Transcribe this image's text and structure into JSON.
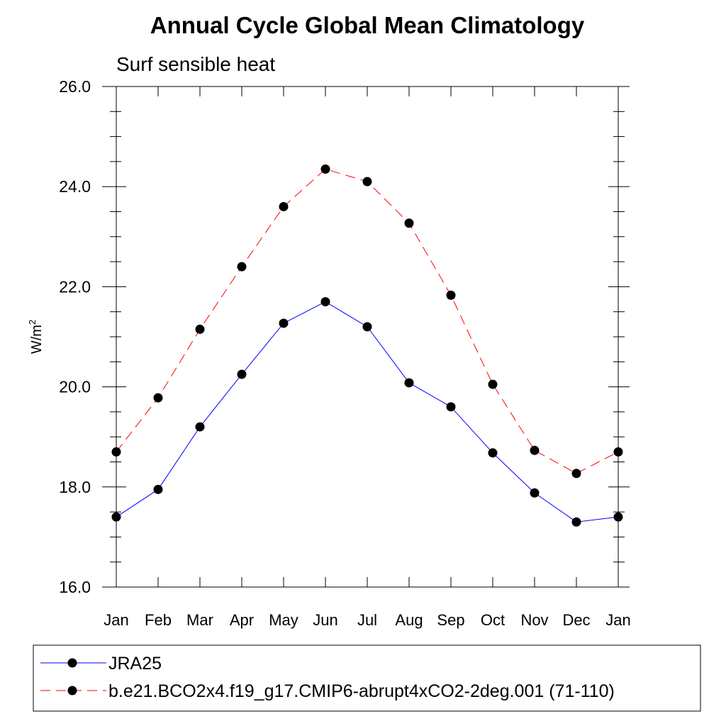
{
  "chart_data": {
    "type": "line",
    "title": "Annual Cycle Global Mean Climatology",
    "subtitle": "Surf sensible heat",
    "ylabel_base": "W/m",
    "ylabel_sup": "2",
    "xlabel": "",
    "categories": [
      "Jan",
      "Feb",
      "Mar",
      "Apr",
      "May",
      "Jun",
      "Jul",
      "Aug",
      "Sep",
      "Oct",
      "Nov",
      "Dec",
      "Jan"
    ],
    "ylim": [
      16.0,
      26.0
    ],
    "yticks": [
      16.0,
      18.0,
      20.0,
      22.0,
      24.0,
      26.0
    ],
    "ytick_labels": [
      "16.0",
      "18.0",
      "20.0",
      "22.0",
      "24.0",
      "26.0"
    ],
    "grid": false,
    "legend_placement": "bottom",
    "series": [
      {
        "name": "JRA25",
        "color": "#0000ff",
        "dashed": false,
        "marker_color": "#000000",
        "values": [
          17.4,
          17.95,
          19.2,
          20.25,
          21.27,
          21.7,
          21.2,
          20.08,
          19.6,
          18.68,
          17.88,
          17.3,
          17.4
        ]
      },
      {
        "name": "b.e21.BCO2x4.f19_g17.CMIP6-abrupt4xCO2-2deg.001 (71-110)",
        "color": "#ff0000",
        "dashed": true,
        "marker_color": "#000000",
        "values": [
          18.7,
          19.78,
          21.15,
          22.4,
          23.6,
          24.35,
          24.1,
          23.27,
          21.83,
          20.05,
          18.73,
          18.27,
          18.7
        ]
      }
    ]
  }
}
